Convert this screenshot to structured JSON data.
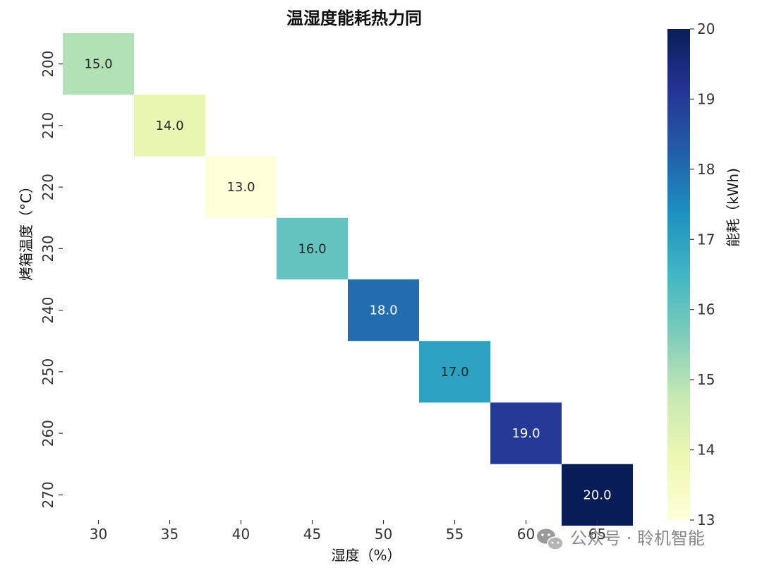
{
  "chart_data": {
    "type": "heatmap",
    "title": "温湿度能耗热力同",
    "xlabel": "湿度（%）",
    "ylabel": "烤箱温度（°C）",
    "x_categories": [
      "30",
      "35",
      "40",
      "45",
      "50",
      "55",
      "60",
      "65"
    ],
    "y_categories": [
      "200",
      "210",
      "220",
      "230",
      "240",
      "250",
      "260",
      "270"
    ],
    "cells": [
      {
        "x": "30",
        "y": "200",
        "value": 15.0,
        "label": "15.0"
      },
      {
        "x": "35",
        "y": "210",
        "value": 14.0,
        "label": "14.0"
      },
      {
        "x": "40",
        "y": "220",
        "value": 13.0,
        "label": "13.0"
      },
      {
        "x": "45",
        "y": "230",
        "value": 16.0,
        "label": "16.0"
      },
      {
        "x": "50",
        "y": "240",
        "value": 18.0,
        "label": "18.0"
      },
      {
        "x": "55",
        "y": "250",
        "value": 17.0,
        "label": "17.0"
      },
      {
        "x": "60",
        "y": "260",
        "value": 19.0,
        "label": "19.0"
      },
      {
        "x": "65",
        "y": "270",
        "value": 20.0,
        "label": "20.0"
      }
    ],
    "colorbar": {
      "label": "能耗（kWh)",
      "range": [
        13,
        20
      ],
      "ticks": [
        "13",
        "14",
        "15",
        "16",
        "17",
        "18",
        "19",
        "20"
      ],
      "colormap": "YlGnBu"
    }
  },
  "watermark": {
    "text": "公众号 · 聆机智能",
    "icon": "wechat-icon"
  }
}
